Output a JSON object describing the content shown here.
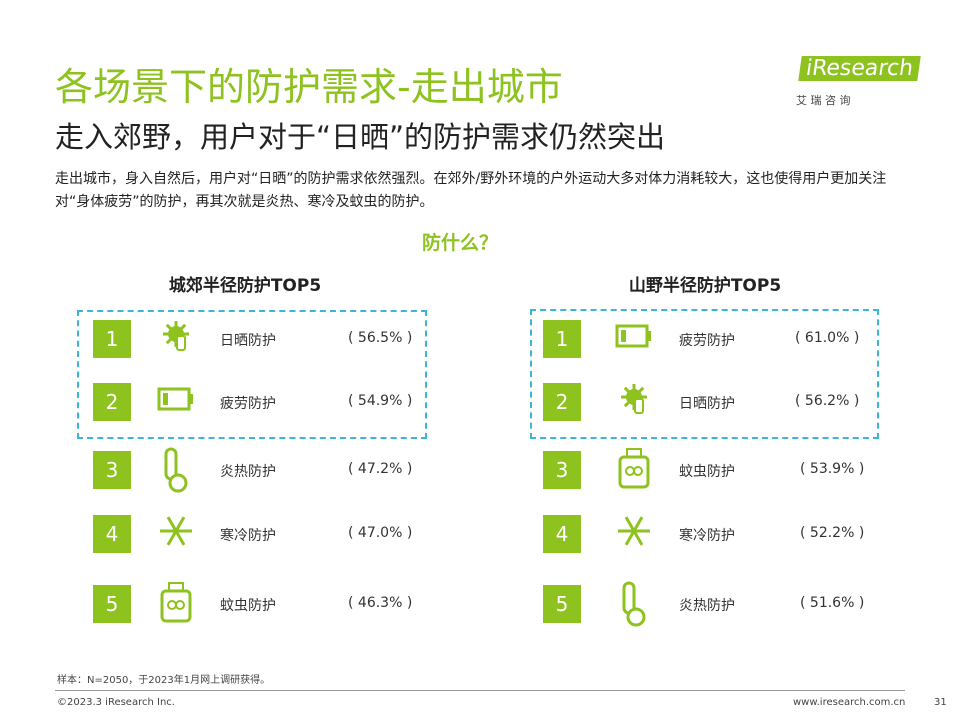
{
  "header": {
    "title": "各场景下的防护需求-走出城市",
    "subtitle": "走入郊野，用户对于“日晒”的防护需求仍然突出",
    "brand": "iResearch",
    "brand_sub": "艾 瑞 咨 询"
  },
  "description": "走出城市，身入自然后，用户对“日晒”的防护需求依然强烈。在郊外/野外环境的户外运动大多对体力消耗较大，这也使得用户更加关注对“身体疲劳”的防护，再其次就是炎热、寒冷及蚊虫的防护。",
  "question": "防什么？",
  "panels": [
    {
      "title": "城郊半径防护TOP5",
      "items": [
        {
          "rank": "1",
          "label": "日晒防护",
          "value": "( 56.5% )"
        },
        {
          "rank": "2",
          "label": "疲劳防护",
          "value": "( 54.9% )"
        },
        {
          "rank": "3",
          "label": "炎热防护",
          "value": "( 47.2% )"
        },
        {
          "rank": "4",
          "label": "寒冷防护",
          "value": "( 47.0% )"
        },
        {
          "rank": "5",
          "label": "蚊虫防护",
          "value": "( 46.3% )"
        }
      ]
    },
    {
      "title": "山野半径防护TOP5",
      "items": [
        {
          "rank": "1",
          "label": "疲劳防护",
          "value": "( 61.0% )"
        },
        {
          "rank": "2",
          "label": "日晒防护",
          "value": "( 56.2% )"
        },
        {
          "rank": "3",
          "label": "蚊虫防护",
          "value": "( 53.9% )"
        },
        {
          "rank": "4",
          "label": "寒冷防护",
          "value": "( 52.2% )"
        },
        {
          "rank": "5",
          "label": "炎热防护",
          "value": "( 51.6% )"
        }
      ]
    }
  ],
  "footer": {
    "note": "样本：N=2050，于2023年1月网上调研获得。",
    "copyright": "©2023.3 iResearch Inc.",
    "url": "www.iresearch.com.cn",
    "page": "31"
  }
}
